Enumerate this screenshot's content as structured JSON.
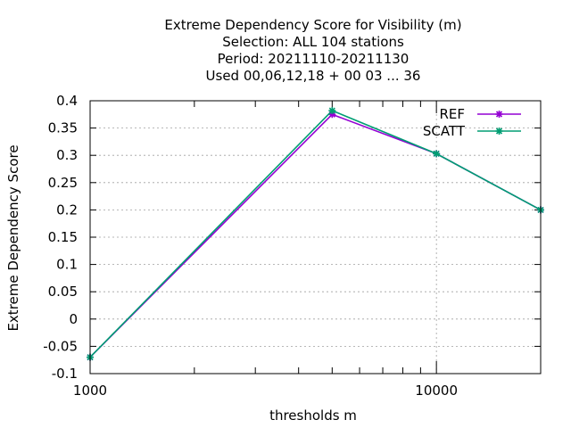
{
  "chart_data": {
    "type": "line",
    "title_lines": [
      "Extreme Dependency Score  for Visibility (m)",
      "Selection: ALL    104 stations",
      "Period: 20211110-20211130",
      "Used  00,06,12,18 + 00 03 ... 36"
    ],
    "xlabel": "thresholds m",
    "ylabel": "Extreme Dependency Score",
    "x_scale": "log",
    "xlim": [
      1000,
      20000
    ],
    "ylim": [
      -0.1,
      0.4
    ],
    "x_ticks": [
      {
        "value": 1000,
        "label": "1000"
      },
      {
        "value": 10000,
        "label": "10000"
      }
    ],
    "y_ticks": [
      {
        "value": -0.1,
        "label": "-0.1"
      },
      {
        "value": -0.05,
        "label": "-0.05"
      },
      {
        "value": 0,
        "label": "0"
      },
      {
        "value": 0.05,
        "label": "0.05"
      },
      {
        "value": 0.1,
        "label": "0.1"
      },
      {
        "value": 0.15,
        "label": "0.15"
      },
      {
        "value": 0.2,
        "label": "0.2"
      },
      {
        "value": 0.25,
        "label": "0.25"
      },
      {
        "value": 0.3,
        "label": "0.3"
      },
      {
        "value": 0.35,
        "label": "0.35"
      },
      {
        "value": 0.4,
        "label": "0.4"
      }
    ],
    "grid": true,
    "legend_position": "top-right",
    "x": [
      1000,
      5000,
      10000,
      20000
    ],
    "series": [
      {
        "name": "REF",
        "color": "#9400d3",
        "values": [
          -0.07,
          0.375,
          0.303,
          0.2
        ]
      },
      {
        "name": "SCATT",
        "color": "#009e73",
        "values": [
          -0.07,
          0.382,
          0.303,
          0.2
        ]
      }
    ]
  }
}
